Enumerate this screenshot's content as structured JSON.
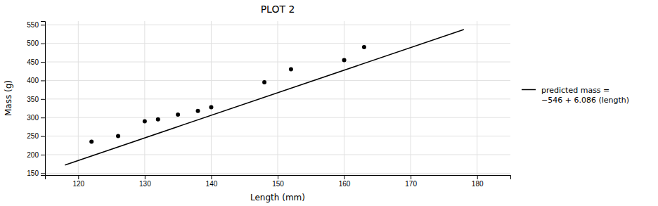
{
  "chart_data": {
    "type": "scatter",
    "title": "PLOT 2",
    "x_label": "Length (mm)",
    "y_label": "Mass (g)",
    "xlim": [
      115,
      185
    ],
    "xticks": [
      120,
      130,
      140,
      150,
      160,
      170,
      180
    ],
    "ylim": [
      145,
      560
    ],
    "yticks": [
      150,
      200,
      250,
      300,
      350,
      400,
      450,
      500,
      550
    ],
    "grid": true,
    "legend": "right",
    "series": [
      {
        "type": "scatter",
        "color": "#000000",
        "x": [
          122,
          126,
          130,
          132,
          135,
          138,
          140,
          148,
          152,
          160,
          163
        ],
        "values": [
          235,
          250,
          290,
          295,
          308,
          318,
          328,
          395,
          430,
          455,
          490
        ]
      },
      {
        "type": "line",
        "name": "predicted mass =\n−546 + 6.086 (length)",
        "color": "#000000",
        "x": [
          118,
          178
        ],
        "values": [
          172.148,
          537.308
        ]
      }
    ]
  }
}
